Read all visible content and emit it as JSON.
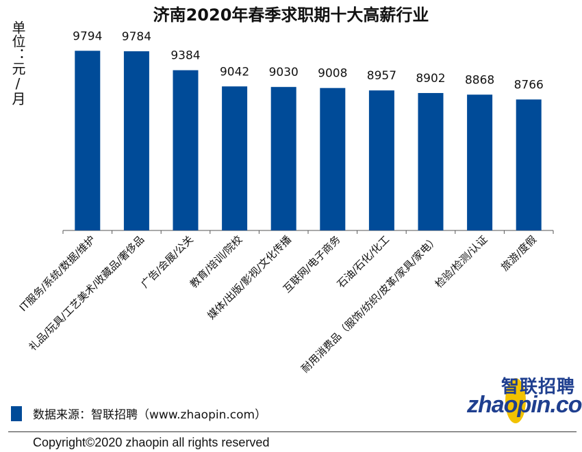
{
  "chart_data": {
    "type": "bar",
    "title": "济南2020年春季求职期十大高薪行业",
    "ylabel": "单位：元/月",
    "xlabel": "",
    "categories": [
      "IT服务/系统/数据/维护",
      "礼品/玩具/工艺美术/收藏品/奢侈品",
      "广告/会展/公关",
      "教育/培训/院校",
      "媒体/出版/影视/文化传播",
      "互联网/电子商务",
      "石油/石化/化工",
      "耐用消费品（服饰/纺织/皮革/家具/家电）",
      "检验/检测/认证",
      "旅游/度假"
    ],
    "values": [
      9794,
      9784,
      9384,
      9042,
      9030,
      9008,
      8957,
      8902,
      8868,
      8766
    ],
    "ylim": [
      6000,
      10000
    ],
    "grid": false,
    "legend": "none",
    "bar_color": "#004b98"
  },
  "source_text": "数据来源：智联招聘（www.zhaopin.com）",
  "copyright": "Copyright©2020 zhaopin all rights reserved",
  "logo": {
    "cn_text": "智联招聘",
    "en_text": "zhaopin.com",
    "cn_color": "#1f3f8f",
    "en_color": "#1f3f8f",
    "accent_color": "#f2c200"
  }
}
